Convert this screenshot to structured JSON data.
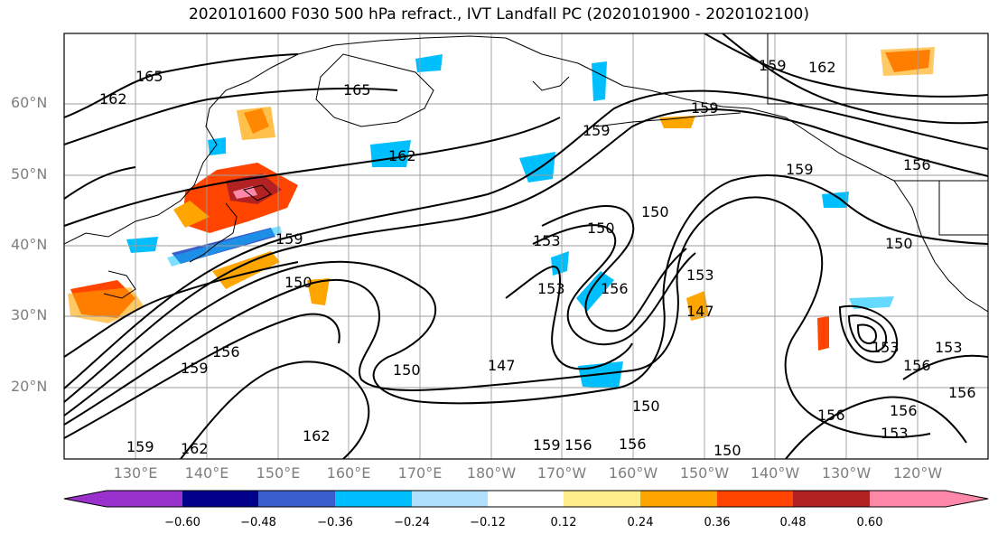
{
  "title": "2020101600 F030 500 hPa refract., IVT Landfall PC (2020101900 - 2020102100)",
  "map": {
    "lat_labels": [
      "60°N",
      "50°N",
      "40°N",
      "30°N",
      "20°N"
    ],
    "lon_labels": [
      "130°E",
      "140°E",
      "150°E",
      "160°E",
      "170°E",
      "180°W",
      "170°W",
      "160°W",
      "150°W",
      "140°W",
      "130°W",
      "120°W"
    ],
    "grid_color": "#9e9e9e",
    "coast_color": "#000000",
    "contour_labels": [
      "165",
      "162",
      "165",
      "162",
      "159",
      "159",
      "150",
      "150",
      "153",
      "150",
      "153",
      "156",
      "150",
      "153",
      "147",
      "159",
      "159",
      "150",
      "147",
      "156",
      "159",
      "162",
      "162",
      "159",
      "156",
      "156",
      "150",
      "156",
      "153",
      "156",
      "153",
      "156",
      "156",
      "153",
      "150",
      "159",
      "162",
      "159",
      "156"
    ]
  },
  "colorbar": {
    "ticks": [
      "−0.60",
      "−0.48",
      "−0.36",
      "−0.24",
      "−0.12",
      "0.12",
      "0.24",
      "0.36",
      "0.48",
      "0.60"
    ],
    "colors": [
      "#9932cc",
      "#00008b",
      "#3a5fcd",
      "#00bfff",
      "#b0e2ff",
      "#ffffff",
      "#ffec8b",
      "#ffa500",
      "#ff4500",
      "#b22222",
      "#ff88aa"
    ]
  }
}
